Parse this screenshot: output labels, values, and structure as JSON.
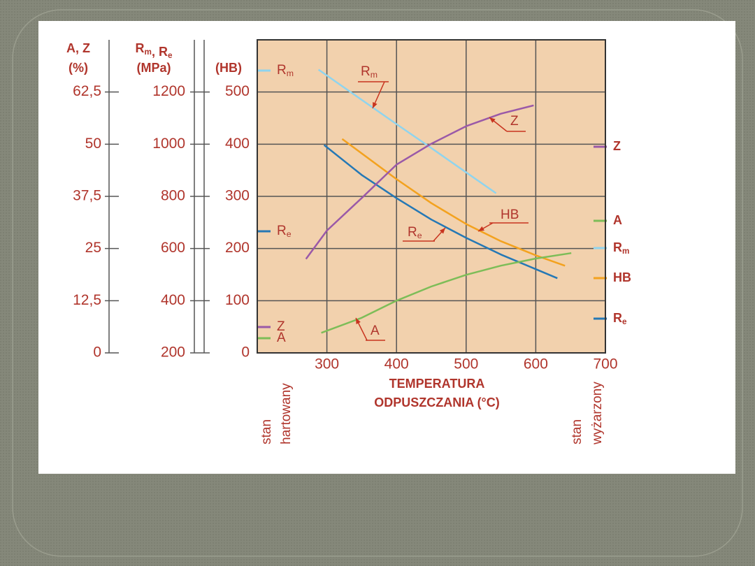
{
  "chart_data": {
    "type": "line",
    "xlabel": [
      "TEMPERATURA",
      "ODPUSZCZANIA  (°C)"
    ],
    "xlim": [
      200,
      700
    ],
    "xticks": [
      300,
      400,
      500,
      600,
      700
    ],
    "grid": true,
    "legend": "right",
    "notes": [
      [
        "stan",
        "hartowany"
      ],
      [
        "stan",
        "wyżarzony"
      ]
    ],
    "axes": [
      {
        "id": "az",
        "title": [
          "A, Z",
          "(%)"
        ],
        "ylim": [
          0,
          75
        ],
        "yticks": [
          0,
          {
            "value": 12.5,
            "label": "12,5"
          },
          25,
          {
            "value": 37.5,
            "label": "37,5"
          },
          50,
          {
            "value": 62.5,
            "label": "62,5"
          }
        ]
      },
      {
        "id": "rm",
        "title": [
          "Rm, Re",
          "(MPa)"
        ],
        "ylim": [
          200,
          1400
        ],
        "yticks": [
          200,
          400,
          600,
          800,
          1000,
          1200
        ]
      },
      {
        "id": "hb",
        "title": [
          "(HB)"
        ],
        "ylim": [
          0,
          600
        ],
        "yticks": [
          0,
          100,
          200,
          300,
          400,
          500
        ]
      }
    ],
    "series": [
      {
        "name": "Rm",
        "color": "#8fd4ee",
        "axis": "rm",
        "x": [
          288,
          350,
          400,
          450,
          500,
          543
        ],
        "values": [
          1286,
          1170,
          1077,
          985,
          892,
          812
        ]
      },
      {
        "name": "Re",
        "color": "#2578b5",
        "axis": "rm",
        "x": [
          296,
          350,
          400,
          450,
          500,
          550,
          600,
          631
        ],
        "values": [
          997,
          882,
          793,
          711,
          641,
          577,
          521,
          486
        ]
      },
      {
        "name": "HB",
        "color": "#f3a21f",
        "axis": "hb",
        "x": [
          322,
          400,
          450,
          500,
          550,
          600,
          642
        ],
        "values": [
          410,
          333,
          287,
          247,
          214,
          187,
          167
        ]
      },
      {
        "name": "Z",
        "color": "#9a59a8",
        "axis": "az",
        "x": [
          270,
          300,
          350,
          400,
          450,
          500,
          550,
          597
        ],
        "values": [
          22.5,
          29.3,
          37.1,
          45.1,
          50.1,
          54.3,
          57.3,
          59.3
        ]
      },
      {
        "name": "A",
        "color": "#7dbd58",
        "axis": "az",
        "x": [
          292,
          350,
          400,
          450,
          500,
          550,
          600,
          651
        ],
        "values": [
          4.8,
          8.4,
          12.5,
          15.9,
          18.7,
          20.9,
          22.6,
          23.9
        ]
      }
    ]
  }
}
